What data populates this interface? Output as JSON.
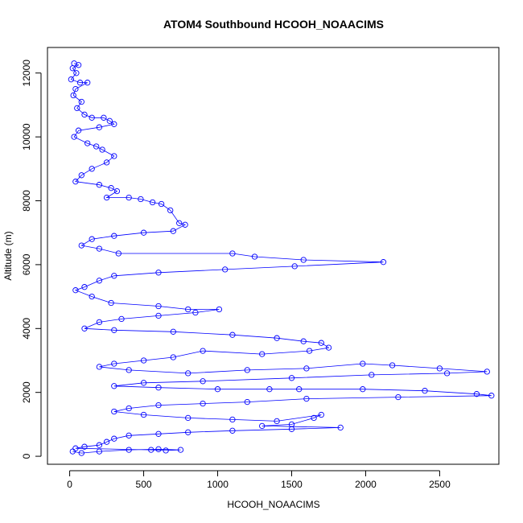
{
  "chart_data": {
    "type": "scatter",
    "title": "ATOM4 Southbound HCOOH_NOAACIMS",
    "xlabel": "HCOOH_NOAACIMS",
    "ylabel": "Altitude (m)",
    "xlim": [
      -150,
      2900
    ],
    "ylim": [
      -250,
      12800
    ],
    "x_ticks": [
      0,
      500,
      1000,
      1500,
      2000,
      2500
    ],
    "y_ticks": [
      0,
      2000,
      4000,
      6000,
      8000,
      10000,
      12000
    ],
    "x_tick_labels": [
      "0",
      "500",
      "1000",
      "1500",
      "2000",
      "2500"
    ],
    "y_tick_labels": [
      "0",
      "2000",
      "4000",
      "6000",
      "8000",
      "10000",
      "12000"
    ],
    "grid": false,
    "marker": "open-circle",
    "lines_connecting_points": true,
    "series_color": "#0000ff",
    "series": [
      {
        "name": "",
        "points": [
          [
            30,
            12300
          ],
          [
            60,
            12250
          ],
          [
            20,
            12150
          ],
          [
            45,
            12000
          ],
          [
            10,
            11800
          ],
          [
            70,
            11700
          ],
          [
            120,
            11700
          ],
          [
            40,
            11500
          ],
          [
            25,
            11300
          ],
          [
            80,
            11100
          ],
          [
            50,
            10900
          ],
          [
            100,
            10700
          ],
          [
            150,
            10600
          ],
          [
            230,
            10600
          ],
          [
            270,
            10500
          ],
          [
            300,
            10400
          ],
          [
            200,
            10300
          ],
          [
            60,
            10200
          ],
          [
            30,
            10000
          ],
          [
            120,
            9800
          ],
          [
            180,
            9700
          ],
          [
            220,
            9600
          ],
          [
            300,
            9400
          ],
          [
            250,
            9200
          ],
          [
            150,
            9000
          ],
          [
            80,
            8800
          ],
          [
            40,
            8600
          ],
          [
            200,
            8500
          ],
          [
            280,
            8400
          ],
          [
            320,
            8300
          ],
          [
            250,
            8100
          ],
          [
            400,
            8100
          ],
          [
            480,
            8050
          ],
          [
            560,
            7950
          ],
          [
            620,
            7900
          ],
          [
            680,
            7700
          ],
          [
            740,
            7300
          ],
          [
            780,
            7250
          ],
          [
            700,
            7050
          ],
          [
            500,
            7000
          ],
          [
            300,
            6900
          ],
          [
            150,
            6800
          ],
          [
            80,
            6600
          ],
          [
            200,
            6500
          ],
          [
            330,
            6350
          ],
          [
            1100,
            6350
          ],
          [
            1250,
            6250
          ],
          [
            1580,
            6150
          ],
          [
            2120,
            6080
          ],
          [
            1520,
            5950
          ],
          [
            1050,
            5850
          ],
          [
            600,
            5750
          ],
          [
            300,
            5650
          ],
          [
            200,
            5500
          ],
          [
            100,
            5300
          ],
          [
            40,
            5200
          ],
          [
            150,
            5000
          ],
          [
            280,
            4800
          ],
          [
            600,
            4700
          ],
          [
            800,
            4600
          ],
          [
            1010,
            4600
          ],
          [
            850,
            4500
          ],
          [
            600,
            4400
          ],
          [
            350,
            4300
          ],
          [
            200,
            4200
          ],
          [
            100,
            4000
          ],
          [
            300,
            3950
          ],
          [
            700,
            3900
          ],
          [
            1100,
            3800
          ],
          [
            1400,
            3700
          ],
          [
            1580,
            3600
          ],
          [
            1700,
            3550
          ],
          [
            1750,
            3400
          ],
          [
            1620,
            3300
          ],
          [
            1300,
            3200
          ],
          [
            900,
            3300
          ],
          [
            700,
            3100
          ],
          [
            500,
            3000
          ],
          [
            300,
            2900
          ],
          [
            200,
            2800
          ],
          [
            400,
            2700
          ],
          [
            800,
            2600
          ],
          [
            1200,
            2700
          ],
          [
            1600,
            2750
          ],
          [
            1980,
            2900
          ],
          [
            2180,
            2850
          ],
          [
            2500,
            2750
          ],
          [
            2820,
            2650
          ],
          [
            2550,
            2600
          ],
          [
            2040,
            2550
          ],
          [
            1500,
            2450
          ],
          [
            900,
            2350
          ],
          [
            500,
            2300
          ],
          [
            300,
            2200
          ],
          [
            600,
            2150
          ],
          [
            1000,
            2100
          ],
          [
            1350,
            2100
          ],
          [
            1550,
            2100
          ],
          [
            1980,
            2100
          ],
          [
            2400,
            2050
          ],
          [
            2750,
            1950
          ],
          [
            2850,
            1900
          ],
          [
            2220,
            1850
          ],
          [
            1600,
            1800
          ],
          [
            1200,
            1700
          ],
          [
            900,
            1650
          ],
          [
            600,
            1600
          ],
          [
            400,
            1500
          ],
          [
            300,
            1400
          ],
          [
            500,
            1300
          ],
          [
            800,
            1200
          ],
          [
            1100,
            1150
          ],
          [
            1400,
            1100
          ],
          [
            1700,
            1300
          ],
          [
            1650,
            1200
          ],
          [
            1500,
            1000
          ],
          [
            1300,
            950
          ],
          [
            1830,
            900
          ],
          [
            1500,
            850
          ],
          [
            1100,
            800
          ],
          [
            800,
            750
          ],
          [
            600,
            700
          ],
          [
            400,
            650
          ],
          [
            300,
            550
          ],
          [
            250,
            450
          ],
          [
            200,
            350
          ],
          [
            100,
            300
          ],
          [
            40,
            250
          ],
          [
            550,
            200
          ],
          [
            650,
            180
          ],
          [
            750,
            200
          ],
          [
            600,
            220
          ],
          [
            400,
            200
          ],
          [
            200,
            150
          ],
          [
            80,
            100
          ],
          [
            20,
            150
          ]
        ]
      }
    ]
  }
}
